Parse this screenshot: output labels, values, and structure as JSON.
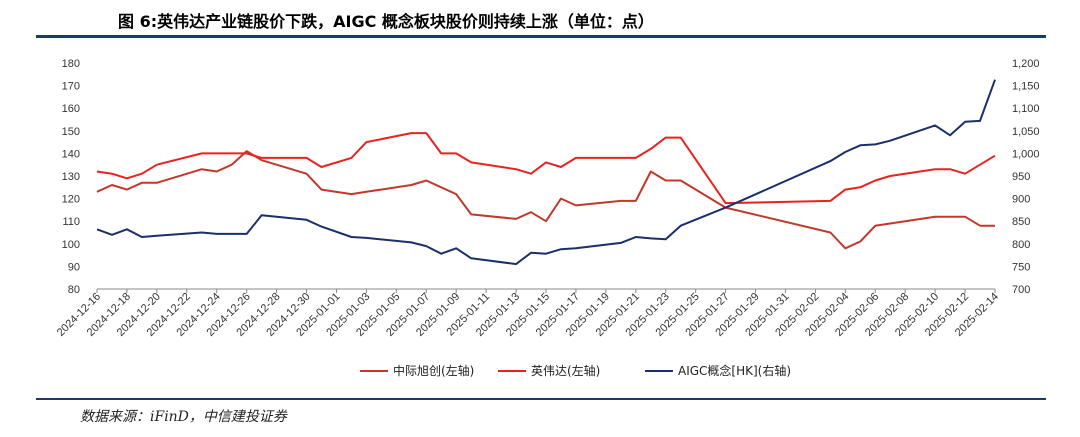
{
  "title": "图 6:英伟达产业链股价下跌，AIGC 概念板块股价则持续上涨（单位：点）",
  "source": "数据来源：iFinD，中信建投证券",
  "chart_data": {
    "type": "line",
    "x": [
      "2024-12-16",
      "2024-12-17",
      "2024-12-18",
      "2024-12-19",
      "2024-12-20",
      "2024-12-23",
      "2024-12-24",
      "2024-12-25",
      "2024-12-26",
      "2024-12-27",
      "2024-12-30",
      "2024-12-31",
      "2025-01-02",
      "2025-01-03",
      "2025-01-06",
      "2025-01-07",
      "2025-01-08",
      "2025-01-09",
      "2025-01-10",
      "2025-01-13",
      "2025-01-14",
      "2025-01-15",
      "2025-01-16",
      "2025-01-17",
      "2025-01-20",
      "2025-01-21",
      "2025-01-22",
      "2025-01-23",
      "2025-01-24",
      "2025-01-27",
      "2025-02-03",
      "2025-02-04",
      "2025-02-05",
      "2025-02-06",
      "2025-02-07",
      "2025-02-10",
      "2025-02-11",
      "2025-02-12",
      "2025-02-13",
      "2025-02-14"
    ],
    "x_tick_labels": [
      "2024-12-16",
      "2024-12-18",
      "2024-12-20",
      "2024-12-22",
      "2024-12-24",
      "2024-12-26",
      "2024-12-28",
      "2024-12-30",
      "2025-01-01",
      "2025-01-03",
      "2025-01-05",
      "2025-01-07",
      "2025-01-09",
      "2025-01-11",
      "2025-01-13",
      "2025-01-15",
      "2025-01-17",
      "2025-01-19",
      "2025-01-21",
      "2025-01-23",
      "2025-01-25",
      "2025-01-27",
      "2025-01-29",
      "2025-01-31",
      "2025-02-02",
      "2025-02-04",
      "2025-02-06",
      "2025-02-08",
      "2025-02-10",
      "2025-02-12",
      "2025-02-14"
    ],
    "xlim": [
      "2024-12-16",
      "2025-02-14"
    ],
    "ylim_left": [
      80,
      180
    ],
    "yticks_left": [
      80,
      90,
      100,
      110,
      120,
      130,
      140,
      150,
      160,
      170,
      180
    ],
    "ylim_right": [
      700,
      1200
    ],
    "yticks_right": [
      "700",
      "750",
      "800",
      "850",
      "900",
      "950",
      "1,000",
      "1,050",
      "1,100",
      "1,150",
      "1,200"
    ],
    "legend_position": "bottom",
    "series": [
      {
        "name": "中际旭创(左轴)",
        "axis": "left",
        "color": "#c0392b",
        "points": [
          [
            "2024-12-16",
            123
          ],
          [
            "2024-12-17",
            126
          ],
          [
            "2024-12-18",
            124
          ],
          [
            "2024-12-19",
            127
          ],
          [
            "2024-12-20",
            127
          ],
          [
            "2024-12-23",
            133
          ],
          [
            "2024-12-24",
            132
          ],
          [
            "2024-12-25",
            135
          ],
          [
            "2024-12-26",
            141
          ],
          [
            "2024-12-27",
            137
          ],
          [
            "2024-12-30",
            131
          ],
          [
            "2024-12-31",
            124
          ],
          [
            "2025-01-02",
            122
          ],
          [
            "2025-01-03",
            123
          ],
          [
            "2025-01-06",
            126
          ],
          [
            "2025-01-07",
            128
          ],
          [
            "2025-01-08",
            125
          ],
          [
            "2025-01-09",
            122
          ],
          [
            "2025-01-10",
            113
          ],
          [
            "2025-01-13",
            111
          ],
          [
            "2025-01-14",
            114
          ],
          [
            "2025-01-15",
            110
          ],
          [
            "2025-01-16",
            120
          ],
          [
            "2025-01-17",
            117
          ],
          [
            "2025-01-20",
            119
          ],
          [
            "2025-01-21",
            119
          ],
          [
            "2025-01-22",
            132
          ],
          [
            "2025-01-23",
            128
          ],
          [
            "2025-01-24",
            128
          ],
          [
            "2025-01-27",
            116
          ],
          [
            "2025-02-03",
            105
          ],
          [
            "2025-02-04",
            98
          ],
          [
            "2025-02-05",
            101
          ],
          [
            "2025-02-06",
            108
          ],
          [
            "2025-02-07",
            109
          ],
          [
            "2025-02-10",
            112
          ],
          [
            "2025-02-11",
            112
          ],
          [
            "2025-02-12",
            112
          ],
          [
            "2025-02-13",
            108
          ],
          [
            "2025-02-14",
            108
          ]
        ]
      },
      {
        "name": "英伟达(左轴)",
        "axis": "left",
        "color": "#e8231f",
        "points": [
          [
            "2024-12-16",
            132
          ],
          [
            "2024-12-17",
            131
          ],
          [
            "2024-12-18",
            129
          ],
          [
            "2024-12-19",
            131
          ],
          [
            "2024-12-20",
            135
          ],
          [
            "2024-12-23",
            140
          ],
          [
            "2024-12-24",
            140
          ],
          [
            "2024-12-26",
            140
          ],
          [
            "2024-12-27",
            138
          ],
          [
            "2024-12-30",
            138
          ],
          [
            "2024-12-31",
            134
          ],
          [
            "2025-01-02",
            138
          ],
          [
            "2025-01-03",
            145
          ],
          [
            "2025-01-06",
            149
          ],
          [
            "2025-01-07",
            149
          ],
          [
            "2025-01-08",
            140
          ],
          [
            "2025-01-09",
            140
          ],
          [
            "2025-01-10",
            136
          ],
          [
            "2025-01-13",
            133
          ],
          [
            "2025-01-14",
            131
          ],
          [
            "2025-01-15",
            136
          ],
          [
            "2025-01-16",
            134
          ],
          [
            "2025-01-17",
            138
          ],
          [
            "2025-01-20",
            138
          ],
          [
            "2025-01-21",
            138
          ],
          [
            "2025-01-22",
            142
          ],
          [
            "2025-01-23",
            147
          ],
          [
            "2025-01-24",
            147
          ],
          [
            "2025-01-27",
            118
          ],
          [
            "2025-02-03",
            119
          ],
          [
            "2025-02-04",
            124
          ],
          [
            "2025-02-05",
            125
          ],
          [
            "2025-02-06",
            128
          ],
          [
            "2025-02-07",
            130
          ],
          [
            "2025-02-10",
            133
          ],
          [
            "2025-02-11",
            133
          ],
          [
            "2025-02-12",
            131
          ],
          [
            "2025-02-13",
            135
          ],
          [
            "2025-02-14",
            139
          ]
        ]
      },
      {
        "name": "AIGC概念[HK](右轴)",
        "axis": "right",
        "color": "#1a2f6b",
        "points": [
          [
            "2024-12-16",
            832
          ],
          [
            "2024-12-17",
            820
          ],
          [
            "2024-12-18",
            832
          ],
          [
            "2024-12-19",
            815
          ],
          [
            "2024-12-20",
            818
          ],
          [
            "2024-12-23",
            825
          ],
          [
            "2024-12-24",
            822
          ],
          [
            "2024-12-26",
            822
          ],
          [
            "2024-12-27",
            863
          ],
          [
            "2024-12-30",
            853
          ],
          [
            "2024-12-31",
            838
          ],
          [
            "2025-01-02",
            815
          ],
          [
            "2025-01-03",
            813
          ],
          [
            "2025-01-06",
            803
          ],
          [
            "2025-01-07",
            795
          ],
          [
            "2025-01-08",
            778
          ],
          [
            "2025-01-09",
            790
          ],
          [
            "2025-01-10",
            768
          ],
          [
            "2025-01-13",
            755
          ],
          [
            "2025-01-14",
            780
          ],
          [
            "2025-01-15",
            778
          ],
          [
            "2025-01-16",
            788
          ],
          [
            "2025-01-17",
            790
          ],
          [
            "2025-01-20",
            802
          ],
          [
            "2025-01-21",
            815
          ],
          [
            "2025-01-22",
            812
          ],
          [
            "2025-01-23",
            810
          ],
          [
            "2025-01-24",
            840
          ],
          [
            "2025-01-27",
            880
          ],
          [
            "2025-02-03",
            983
          ],
          [
            "2025-02-04",
            1003
          ],
          [
            "2025-02-05",
            1018
          ],
          [
            "2025-02-06",
            1020
          ],
          [
            "2025-02-07",
            1028
          ],
          [
            "2025-02-10",
            1062
          ],
          [
            "2025-02-11",
            1040
          ],
          [
            "2025-02-12",
            1070
          ],
          [
            "2025-02-13",
            1072
          ],
          [
            "2025-02-14",
            1163
          ]
        ]
      }
    ]
  }
}
